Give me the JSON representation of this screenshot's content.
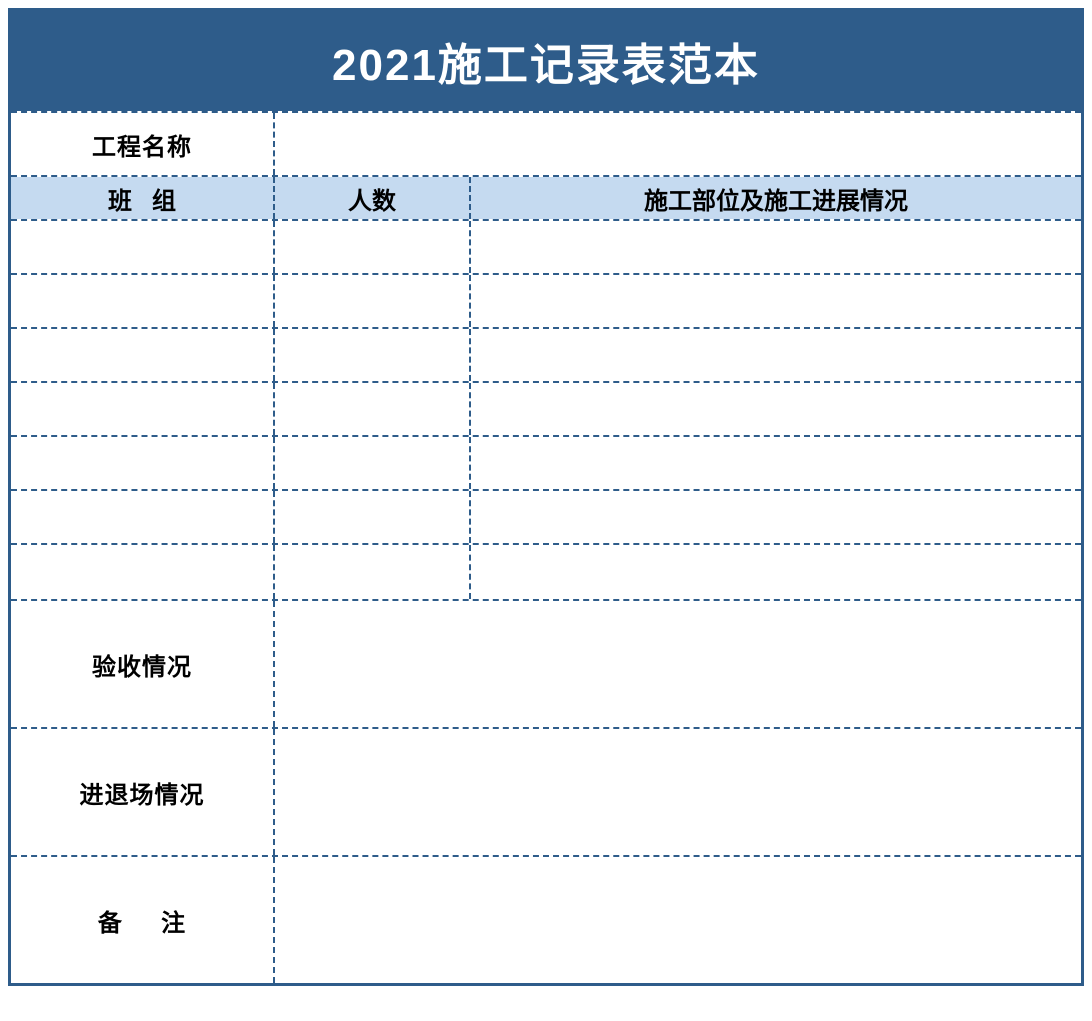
{
  "title": "2021施工记录表范本",
  "labels": {
    "project_name": "工程名称",
    "team": "班   组",
    "people_count": "人数",
    "progress": "施工部位及施工进展情况",
    "acceptance": "验收情况",
    "entry_exit": "进退场情况",
    "remarks": "备     注"
  },
  "values": {
    "project_name": "",
    "acceptance": "",
    "entry_exit": "",
    "remarks": ""
  },
  "data_rows": [
    {
      "team": "",
      "count": "",
      "progress": ""
    },
    {
      "team": "",
      "count": "",
      "progress": ""
    },
    {
      "team": "",
      "count": "",
      "progress": ""
    },
    {
      "team": "",
      "count": "",
      "progress": ""
    },
    {
      "team": "",
      "count": "",
      "progress": ""
    },
    {
      "team": "",
      "count": "",
      "progress": ""
    },
    {
      "team": "",
      "count": "",
      "progress": ""
    }
  ],
  "style": {
    "border_color": "#2e5c8a",
    "title_bg": "#2e5c8a",
    "title_color": "#ffffff",
    "header_bg": "#c5daf0",
    "cell_bg": "#ffffff",
    "text_color": "#000000",
    "title_fontsize": 44,
    "label_fontsize": 24,
    "border_style": "dashed",
    "outer_border_style": "solid"
  }
}
